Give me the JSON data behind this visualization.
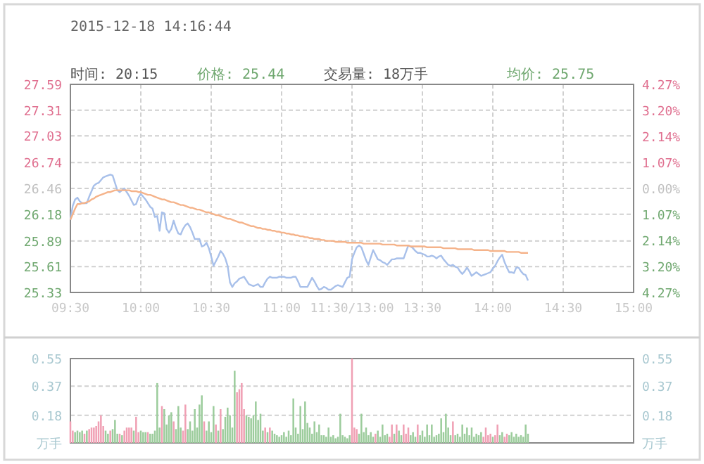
{
  "chart_data": [
    {
      "type": "line",
      "title": "2015-12-18 14:16:44",
      "annotations": [
        "时间: 20:15",
        "价格: 25.44",
        "交易量: 18万手",
        "均价: 25.75"
      ],
      "categories": [
        "09:30",
        null,
        null,
        null,
        null,
        null,
        null,
        null,
        null,
        null,
        null,
        null,
        null,
        null,
        null,
        null,
        null,
        null,
        null,
        null,
        null,
        null,
        null,
        null,
        null,
        null,
        null,
        null,
        null,
        null,
        "10:00",
        null,
        null,
        null,
        null,
        null,
        null,
        null,
        null,
        null,
        null,
        null,
        null,
        null,
        null,
        null,
        null,
        null,
        null,
        null,
        null,
        null,
        null,
        null,
        null,
        null,
        null,
        null,
        null,
        null,
        "10:30",
        null,
        null,
        null,
        null,
        null,
        null,
        null,
        null,
        null,
        null,
        null,
        null,
        null,
        null,
        null,
        null,
        null,
        null,
        null,
        null,
        null,
        null,
        null,
        null,
        null,
        null,
        null,
        null,
        null,
        "11:00",
        null,
        null,
        null,
        null,
        null,
        null,
        null,
        null,
        null,
        null,
        null,
        null,
        null,
        null,
        null,
        null,
        null,
        null,
        null,
        null,
        null,
        null,
        null,
        null,
        null,
        null,
        null,
        null,
        null,
        "11:30/13:00",
        null,
        null,
        null,
        null,
        null,
        null,
        null,
        null,
        null,
        null,
        null,
        null,
        null,
        null,
        null,
        null,
        null,
        null,
        null,
        null,
        null,
        null,
        null,
        null,
        null,
        null,
        null,
        null,
        null,
        "13:30",
        null,
        null,
        null,
        null,
        null,
        null,
        null,
        null,
        null,
        null,
        null,
        null,
        null,
        null,
        null,
        null,
        null,
        null,
        null,
        null,
        null,
        null,
        null,
        null,
        null,
        null,
        null,
        null,
        null,
        "14:00",
        null,
        null,
        null,
        null,
        null,
        null,
        null,
        null,
        null,
        null,
        null,
        null,
        null,
        null,
        null,
        null,
        null,
        null,
        null,
        null,
        null,
        null,
        null,
        null,
        null,
        null,
        null,
        null,
        null,
        "14:30",
        null,
        null,
        null,
        null,
        null,
        null,
        null,
        null,
        null,
        null,
        null,
        null,
        null,
        null,
        null,
        null,
        null,
        null,
        null,
        null,
        null,
        null,
        null,
        null,
        null,
        null,
        null,
        null,
        null,
        "15:00"
      ],
      "ylim": [
        25.33,
        27.59
      ],
      "yticks": [
        25.33,
        25.61,
        25.89,
        26.18,
        26.46,
        26.74,
        27.03,
        27.31,
        27.59
      ],
      "y2lim": [
        -4.27,
        4.27
      ],
      "y2ticks": [
        {
          "value": -4.27,
          "label": "4.27%"
        },
        {
          "value": -3.2,
          "label": "3.20%"
        },
        {
          "value": -2.14,
          "label": "2.14%"
        },
        {
          "value": -1.07,
          "label": "1.07%"
        },
        {
          "value": 0,
          "label": "0.00%"
        },
        {
          "value": 1.07,
          "label": "1.07%"
        },
        {
          "value": 2.14,
          "label": "2.14%"
        },
        {
          "value": 3.2,
          "label": "3.20%"
        },
        {
          "value": 4.27,
          "label": "4.27%"
        }
      ],
      "grid": true,
      "line_style": "solid",
      "marker": "none",
      "series": [
        {
          "color": "#a8c0ea",
          "values": [
            26.12,
            26.27,
            26.34,
            26.36,
            26.32,
            26.3,
            26.3,
            26.3,
            26.37,
            26.43,
            26.49,
            26.51,
            26.52,
            26.55,
            26.58,
            26.59,
            26.6,
            26.61,
            26.6,
            26.52,
            26.44,
            26.42,
            26.44,
            26.46,
            26.42,
            26.38,
            26.33,
            26.28,
            26.29,
            26.36,
            26.4,
            26.37,
            26.34,
            26.3,
            26.26,
            26.24,
            26.15,
            26.16,
            26.0,
            26.2,
            26.19,
            26.02,
            25.98,
            26.02,
            26.11,
            26.03,
            25.97,
            25.96,
            26.02,
            26.06,
            26.08,
            26.04,
            25.98,
            25.91,
            25.91,
            25.91,
            25.83,
            25.84,
            25.87,
            25.81,
            25.72,
            25.62,
            25.67,
            25.72,
            25.78,
            25.75,
            25.7,
            25.62,
            25.44,
            25.39,
            25.43,
            25.45,
            25.48,
            25.49,
            25.5,
            25.46,
            25.42,
            25.41,
            25.4,
            25.41,
            25.42,
            25.39,
            25.39,
            25.44,
            25.48,
            25.5,
            25.49,
            25.49,
            25.49,
            25.5,
            25.5,
            25.5,
            25.49,
            25.49,
            25.49,
            25.5,
            25.5,
            25.45,
            25.39,
            25.39,
            25.39,
            25.39,
            25.44,
            25.49,
            25.45,
            25.4,
            25.36,
            25.37,
            25.39,
            25.38,
            25.36,
            25.36,
            25.38,
            25.4,
            25.41,
            25.4,
            25.39,
            25.44,
            25.49,
            25.5,
            25.69,
            25.76,
            25.82,
            25.84,
            25.82,
            25.75,
            25.68,
            25.63,
            25.71,
            25.79,
            25.74,
            25.69,
            25.68,
            25.66,
            25.65,
            25.63,
            25.66,
            25.69,
            25.69,
            25.7,
            25.7,
            25.7,
            25.7,
            25.77,
            25.84,
            25.83,
            25.81,
            25.78,
            25.76,
            25.76,
            25.75,
            25.74,
            25.72,
            25.72,
            25.73,
            25.72,
            25.7,
            25.72,
            25.73,
            25.69,
            25.66,
            25.63,
            25.62,
            25.63,
            25.61,
            25.6,
            25.56,
            25.53,
            25.56,
            25.6,
            25.56,
            25.51,
            25.53,
            25.55,
            25.53,
            25.51,
            25.52,
            25.53,
            25.54,
            25.55,
            25.59,
            25.62,
            25.67,
            25.71,
            25.74,
            25.66,
            25.6,
            25.55,
            25.55,
            25.54,
            25.6,
            25.6,
            25.56,
            25.53,
            25.52,
            25.46,
            null,
            null,
            null,
            null,
            null,
            null,
            null,
            null,
            null,
            null,
            null,
            null,
            null,
            null,
            null,
            null,
            null,
            null,
            null,
            null,
            null,
            null,
            null,
            null,
            null,
            null,
            null,
            null,
            null,
            null,
            null,
            null,
            null,
            null,
            null,
            null,
            null,
            null,
            null,
            null,
            null,
            null,
            null,
            null,
            null
          ]
        },
        {
          "color": "#f5b38a",
          "values": [
            26.12,
            26.18,
            26.24,
            26.29,
            26.29,
            26.3,
            26.3,
            26.31,
            26.32,
            26.34,
            26.35,
            26.37,
            26.38,
            26.39,
            26.4,
            26.41,
            26.42,
            26.42,
            26.43,
            26.44,
            26.44,
            26.44,
            26.44,
            26.44,
            26.44,
            26.44,
            26.43,
            26.43,
            26.43,
            26.42,
            26.42,
            26.41,
            26.4,
            26.39,
            26.39,
            26.38,
            26.37,
            26.36,
            26.35,
            26.34,
            26.34,
            26.33,
            26.32,
            26.31,
            26.31,
            26.3,
            26.29,
            26.28,
            26.28,
            26.27,
            26.26,
            26.25,
            26.25,
            26.24,
            26.23,
            26.23,
            26.22,
            26.21,
            26.2,
            26.2,
            26.19,
            26.18,
            26.17,
            26.17,
            26.16,
            26.15,
            26.14,
            26.13,
            26.13,
            26.12,
            26.11,
            26.1,
            26.09,
            26.09,
            26.08,
            26.07,
            26.06,
            26.05,
            26.05,
            26.04,
            26.03,
            26.03,
            26.02,
            26.02,
            26.01,
            26.01,
            26.0,
            26.0,
            25.99,
            25.99,
            25.98,
            25.98,
            25.97,
            25.97,
            25.96,
            25.96,
            25.95,
            25.95,
            25.94,
            25.94,
            25.93,
            25.93,
            25.92,
            25.92,
            25.91,
            25.91,
            25.91,
            25.9,
            25.9,
            25.89,
            25.89,
            25.89,
            25.89,
            25.88,
            25.88,
            25.88,
            25.88,
            25.88,
            25.87,
            25.87,
            25.87,
            25.87,
            25.87,
            25.87,
            25.87,
            25.86,
            25.86,
            25.86,
            25.86,
            25.86,
            25.86,
            25.86,
            25.86,
            25.85,
            25.85,
            25.85,
            25.85,
            25.85,
            25.85,
            25.84,
            25.84,
            25.84,
            25.84,
            25.84,
            25.84,
            25.83,
            25.83,
            25.83,
            25.83,
            25.83,
            25.83,
            25.83,
            25.82,
            25.82,
            25.82,
            25.82,
            25.82,
            25.82,
            25.82,
            25.81,
            25.81,
            25.81,
            25.81,
            25.81,
            25.81,
            25.8,
            25.8,
            25.8,
            25.8,
            25.8,
            25.8,
            25.8,
            25.79,
            25.79,
            25.79,
            25.79,
            25.79,
            25.79,
            25.79,
            25.78,
            25.78,
            25.78,
            25.78,
            25.78,
            25.78,
            25.78,
            25.77,
            25.77,
            25.77,
            25.77,
            25.77,
            25.77,
            25.76,
            25.76,
            25.76,
            25.76,
            null,
            null,
            null,
            null,
            null,
            null,
            null,
            null,
            null,
            null,
            null,
            null,
            null,
            null,
            null,
            null,
            null,
            null,
            null,
            null,
            null,
            null,
            null,
            null,
            null,
            null,
            null,
            null,
            null,
            null,
            null,
            null,
            null,
            null,
            null,
            null,
            null,
            null,
            null,
            null,
            null,
            null,
            null,
            null,
            null
          ]
        }
      ]
    },
    {
      "type": "bar",
      "grid": "y",
      "categories": [
        null,
        null,
        null,
        null,
        null,
        null,
        null,
        null,
        null,
        null,
        null,
        null,
        null,
        null,
        null,
        null,
        null,
        null,
        null,
        null,
        null,
        null,
        null,
        null,
        null,
        null,
        null,
        null,
        null,
        null,
        null,
        null,
        null,
        null,
        null,
        null,
        null,
        null,
        null,
        null,
        null,
        null,
        null,
        null,
        null,
        null,
        null,
        null,
        null,
        null,
        null,
        null,
        null,
        null,
        null,
        null,
        null,
        null,
        null,
        null,
        null,
        null,
        null,
        null,
        null,
        null,
        null,
        null,
        null,
        null,
        null,
        null,
        null,
        null,
        null,
        null,
        null,
        null,
        null,
        null,
        null,
        null,
        null,
        null,
        null,
        null,
        null,
        null,
        null,
        null,
        null,
        null,
        null,
        null,
        null,
        null,
        null,
        null,
        null,
        null,
        null,
        null,
        null,
        null,
        null,
        null,
        null,
        null,
        null,
        null,
        null,
        null,
        null,
        null,
        null,
        null,
        null,
        null,
        null,
        null,
        null,
        null,
        null,
        null,
        null,
        null,
        null,
        null,
        null,
        null,
        null,
        null,
        null,
        null,
        null,
        null,
        null,
        null,
        null,
        null,
        null,
        null,
        null,
        null,
        null,
        null,
        null,
        null,
        null,
        null,
        null,
        null,
        null,
        null,
        null,
        null,
        null,
        null,
        null,
        null,
        null,
        null,
        null,
        null,
        null,
        null,
        null,
        null,
        null,
        null,
        null,
        null,
        null,
        null,
        null,
        null,
        null,
        null,
        null,
        null,
        null,
        null,
        null,
        null,
        null,
        null,
        null,
        null,
        null,
        null,
        null,
        null,
        null,
        null,
        null,
        null,
        null,
        null,
        null,
        null,
        null,
        null,
        null,
        null,
        null,
        null,
        null,
        null,
        null,
        null,
        null,
        null,
        null,
        null,
        null,
        null,
        null,
        null,
        null,
        null,
        null,
        null,
        null,
        null,
        null,
        null,
        null,
        null,
        null,
        null,
        null,
        null,
        null,
        null,
        null,
        null,
        null,
        null,
        null,
        null,
        null
      ],
      "ylim": [
        0,
        0.55
      ],
      "yticks": [
        {
          "value": 0,
          "label": "万手"
        },
        0.18,
        0.37,
        0.55
      ],
      "y2lim": [
        0,
        0.55
      ],
      "y2ticks": [
        {
          "value": 0,
          "label": "万手"
        },
        0.18,
        0.37,
        0.55
      ],
      "values": [
        0.14,
        0.08,
        0.07,
        0.08,
        0.07,
        0.08,
        0.06,
        0.08,
        0.09,
        0.1,
        0.1,
        0.11,
        0.14,
        0.18,
        0.11,
        0.08,
        0.06,
        0.08,
        0.09,
        0.15,
        0.06,
        0.06,
        0.05,
        0.08,
        0.1,
        0.1,
        0.1,
        0.08,
        0.17,
        0.07,
        0.08,
        0.07,
        0.07,
        0.07,
        0.06,
        0.06,
        0.08,
        0.39,
        0.1,
        0.24,
        0.22,
        0.12,
        0.18,
        0.2,
        0.14,
        0.09,
        0.24,
        0.1,
        0.08,
        0.25,
        0.09,
        0.14,
        0.08,
        0.22,
        0.1,
        0.25,
        0.31,
        0.14,
        0.08,
        0.14,
        0.07,
        0.24,
        0.12,
        0.08,
        0.22,
        0.09,
        0.17,
        0.23,
        0.18,
        0.1,
        0.47,
        0.33,
        0.35,
        0.39,
        0.22,
        0.18,
        0.17,
        0.16,
        0.18,
        0.27,
        0.15,
        0.19,
        0.08,
        0.1,
        0.07,
        0.1,
        0.08,
        0.06,
        0.05,
        0.04,
        0.05,
        0.07,
        0.04,
        0.08,
        0.05,
        0.29,
        0.1,
        0.06,
        0.24,
        0.09,
        0.27,
        0.13,
        0.1,
        0.06,
        0.14,
        0.07,
        0.12,
        0.05,
        0.05,
        0.04,
        0.1,
        0.04,
        0.05,
        0.03,
        0.04,
        0.19,
        0.05,
        0.04,
        0.03,
        0.05,
        0.55,
        0.1,
        0.09,
        0.06,
        0.19,
        0.07,
        0.1,
        0.05,
        0.07,
        0.04,
        0.06,
        0.08,
        0.04,
        0.12,
        0.05,
        0.06,
        0.04,
        0.12,
        0.06,
        0.12,
        0.08,
        0.05,
        0.12,
        0.06,
        0.1,
        0.05,
        0.07,
        0.04,
        0.12,
        0.05,
        0.08,
        0.04,
        0.12,
        0.05,
        0.12,
        0.04,
        0.05,
        0.06,
        0.16,
        0.07,
        0.19,
        0.1,
        0.05,
        0.14,
        0.05,
        0.06,
        0.04,
        0.12,
        0.06,
        0.1,
        0.05,
        0.1,
        0.04,
        0.06,
        0.05,
        0.07,
        0.04,
        0.1,
        0.05,
        0.06,
        0.04,
        0.05,
        0.12,
        0.05,
        0.07,
        0.04,
        0.06,
        0.05,
        0.07,
        0.04,
        0.06,
        0.04,
        0.05,
        0.04,
        0.12,
        0.06,
        null,
        null,
        null,
        null,
        null,
        null,
        null,
        null,
        null,
        null,
        null,
        null,
        null,
        null,
        null,
        null,
        null,
        null,
        null,
        null,
        null,
        null,
        null,
        null,
        null,
        null,
        null,
        null,
        null,
        null,
        null,
        null,
        null,
        null,
        null,
        null,
        null,
        null,
        null,
        null,
        null,
        null,
        null,
        null,
        null
      ],
      "colors": [
        "#f0a0b4",
        "#f0a0b4",
        "#9ccc9c",
        "#9ccc9c",
        "#9ccc9c",
        "#9ccc9c",
        "#f0a0b4",
        "#9ccc9c",
        "#f0a0b4",
        "#f0a0b4",
        "#f0a0b4",
        "#f0a0b4",
        "#f0a0b4",
        "#f0a0b4",
        "#f0a0b4",
        "#9ccc9c",
        "#9ccc9c",
        "#f0a0b4",
        "#9ccc9c",
        "#9ccc9c",
        "#9ccc9c",
        "#f0a0b4",
        "#9ccc9c",
        "#f0a0b4",
        "#f0a0b4",
        "#f0a0b4",
        "#f0a0b4",
        "#9ccc9c",
        "#f0a0b4",
        "#f0a0b4",
        "#9ccc9c",
        "#9ccc9c",
        "#9ccc9c",
        "#f0a0b4",
        "#9ccc9c",
        "#9ccc9c",
        "#9ccc9c",
        "#9ccc9c",
        "#9ccc9c",
        "#f0a0b4",
        "#9ccc9c",
        "#9ccc9c",
        "#9ccc9c",
        "#9ccc9c",
        "#f0a0b4",
        "#9ccc9c",
        "#9ccc9c",
        "#9ccc9c",
        "#f0a0b4",
        "#f0a0b4",
        "#9ccc9c",
        "#9ccc9c",
        "#9ccc9c",
        "#9ccc9c",
        "#9ccc9c",
        "#9ccc9c",
        "#9ccc9c",
        "#f0a0b4",
        "#9ccc9c",
        "#9ccc9c",
        "#9ccc9c",
        "#9ccc9c",
        "#f0a0b4",
        "#9ccc9c",
        "#f0a0b4",
        "#9ccc9c",
        "#9ccc9c",
        "#9ccc9c",
        "#9ccc9c",
        "#9ccc9c",
        "#9ccc9c",
        "#f0a0b4",
        "#f0a0b4",
        "#f0a0b4",
        "#f0a0b4",
        "#9ccc9c",
        "#9ccc9c",
        "#9ccc9c",
        "#9ccc9c",
        "#9ccc9c",
        "#9ccc9c",
        "#9ccc9c",
        "#9ccc9c",
        "#f0a0b4",
        "#9ccc9c",
        "#f0a0b4",
        "#9ccc9c",
        "#9ccc9c",
        "#9ccc9c",
        "#9ccc9c",
        "#9ccc9c",
        "#9ccc9c",
        "#9ccc9c",
        "#9ccc9c",
        "#9ccc9c",
        "#9ccc9c",
        "#9ccc9c",
        "#9ccc9c",
        "#9ccc9c",
        "#9ccc9c",
        "#9ccc9c",
        "#9ccc9c",
        "#9ccc9c",
        "#9ccc9c",
        "#9ccc9c",
        "#9ccc9c",
        "#9ccc9c",
        "#9ccc9c",
        "#9ccc9c",
        "#9ccc9c",
        "#9ccc9c",
        "#9ccc9c",
        "#9ccc9c",
        "#9ccc9c",
        "#9ccc9c",
        "#9ccc9c",
        "#9ccc9c",
        "#9ccc9c",
        "#9ccc9c",
        "#9ccc9c",
        "#f0a0b4",
        "#f0a0b4",
        "#f0a0b4",
        "#9ccc9c",
        "#9ccc9c",
        "#9ccc9c",
        "#9ccc9c",
        "#9ccc9c",
        "#9ccc9c",
        "#9ccc9c",
        "#f0a0b4",
        "#9ccc9c",
        "#9ccc9c",
        "#9ccc9c",
        "#9ccc9c",
        "#9ccc9c",
        "#f0a0b4",
        "#f0a0b4",
        "#9ccc9c",
        "#f0a0b4",
        "#9ccc9c",
        "#9ccc9c",
        "#f0a0b4",
        "#f0a0b4",
        "#f0a0b4",
        "#9ccc9c",
        "#9ccc9c",
        "#9ccc9c",
        "#f0a0b4",
        "#9ccc9c",
        "#9ccc9c",
        "#9ccc9c",
        "#9ccc9c",
        "#9ccc9c",
        "#9ccc9c",
        "#9ccc9c",
        "#9ccc9c",
        "#9ccc9c",
        "#9ccc9c",
        "#9ccc9c",
        "#9ccc9c",
        "#9ccc9c",
        "#9ccc9c",
        "#f0a0b4",
        "#9ccc9c",
        "#9ccc9c",
        "#9ccc9c",
        "#9ccc9c",
        "#9ccc9c",
        "#9ccc9c",
        "#9ccc9c",
        "#9ccc9c",
        "#9ccc9c",
        "#9ccc9c",
        "#9ccc9c",
        "#9ccc9c",
        "#f0a0b4",
        "#f0a0b4",
        "#f0a0b4",
        "#f0a0b4",
        "#9ccc9c",
        "#f0a0b4",
        "#f0a0b4",
        "#9ccc9c",
        "#9ccc9c",
        "#f0a0b4",
        "#f0a0b4",
        "#9ccc9c",
        "#9ccc9c",
        "#9ccc9c",
        "#9ccc9c",
        "#9ccc9c",
        "#9ccc9c",
        "#9ccc9c",
        "#9ccc9c",
        "#9ccc9c",
        null,
        null,
        null,
        null,
        null,
        null,
        null,
        null,
        null,
        null,
        null,
        null,
        null,
        null,
        null,
        null,
        null,
        null,
        null,
        null,
        null,
        null,
        null,
        null,
        null,
        null,
        null,
        null,
        null,
        null,
        null,
        null,
        null,
        null,
        null,
        null,
        null,
        null,
        null,
        null,
        null,
        null,
        null,
        null,
        null
      ]
    }
  ]
}
